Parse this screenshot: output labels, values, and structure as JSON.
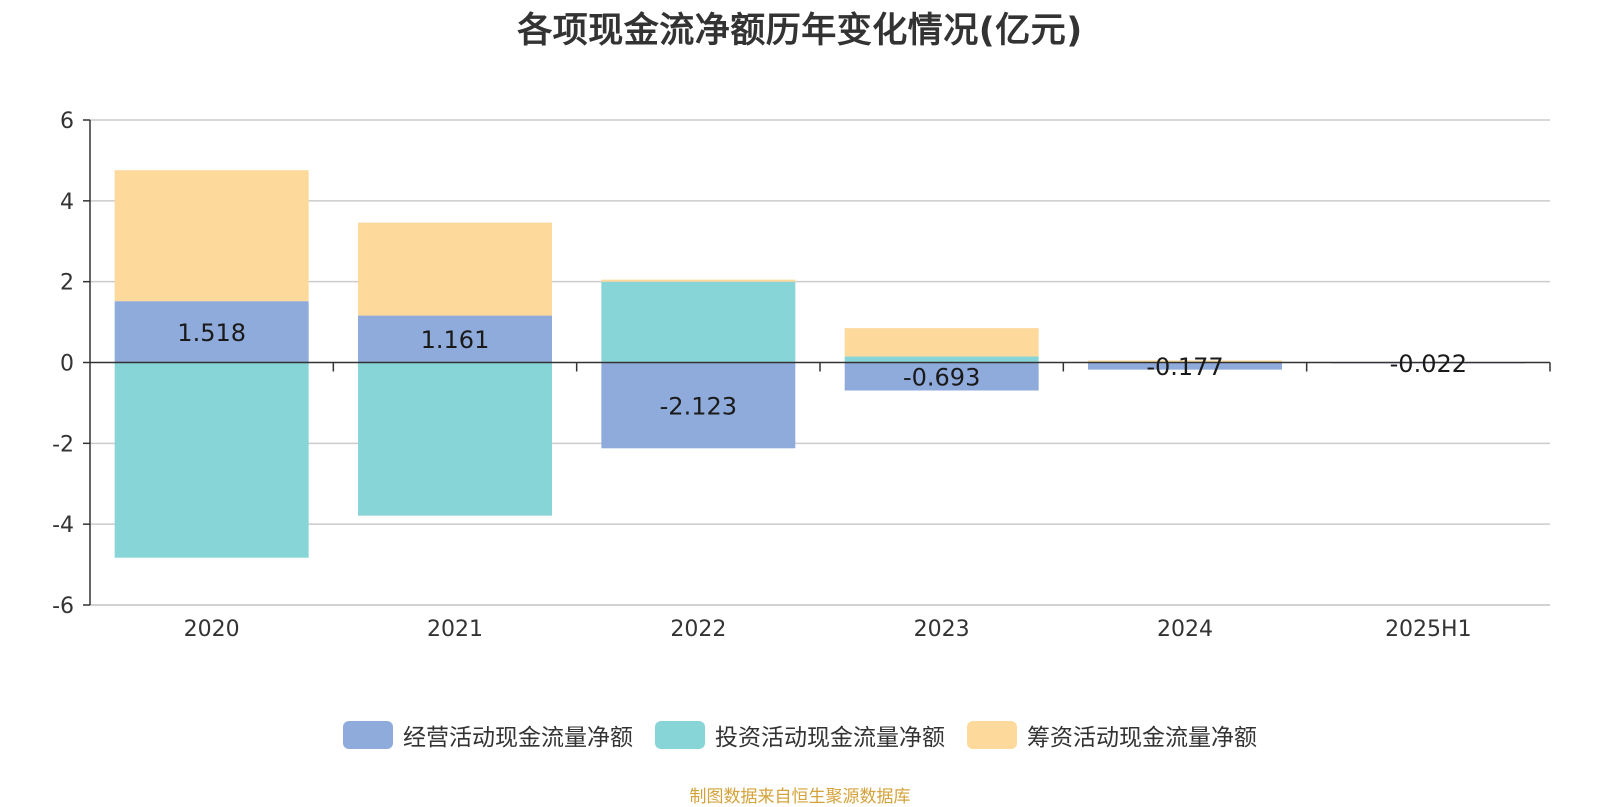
{
  "chart_data": {
    "type": "bar",
    "stacked": true,
    "title": "各项现金流净额历年变化情况(亿元)",
    "categories": [
      "2020",
      "2021",
      "2022",
      "2023",
      "2024",
      "2025H1"
    ],
    "series": [
      {
        "name": "经营活动现金流量净额",
        "color": "#8fabdb",
        "values": [
          1.518,
          1.161,
          -2.123,
          -0.693,
          -0.177,
          -0.022
        ],
        "labels": [
          "1.518",
          "1.161",
          "-2.123",
          "-0.693",
          "-0.177",
          "-0.022"
        ]
      },
      {
        "name": "投资活动现金流量净额",
        "color": "#88d5d8",
        "values": [
          -4.83,
          -3.79,
          2.0,
          0.15,
          0.0,
          0.01
        ]
      },
      {
        "name": "筹资活动现金流量净额",
        "color": "#fdd99b",
        "values": [
          3.24,
          2.3,
          0.05,
          0.7,
          0.05,
          0.0
        ]
      }
    ],
    "yticks": [
      "6",
      "4",
      "2",
      "0",
      "-2",
      "-4",
      "-6"
    ],
    "ylim": [
      -6,
      6
    ],
    "grid": true,
    "legend_position": "bottom-center"
  },
  "source_note": "制图数据来自恒生聚源数据库"
}
